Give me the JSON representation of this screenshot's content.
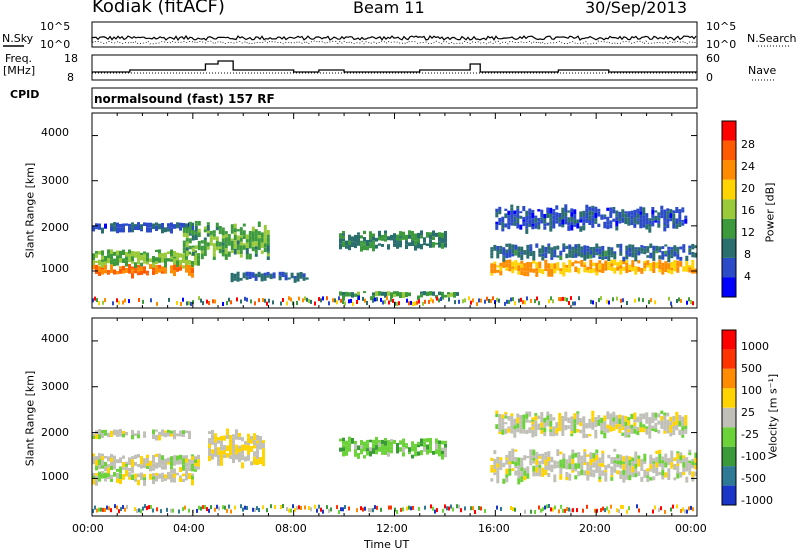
{
  "header": {
    "station": "Kodiak (fitACF)",
    "beam": "Beam 11",
    "date": "30/Sep/2013"
  },
  "noise_panel": {
    "left_label": "N.Sky",
    "right_label": "N.Search",
    "top_tick": "10^5",
    "bottom_tick": "10^0"
  },
  "freq_panel": {
    "left_label_1": "Freq.",
    "left_label_2": "[MHz]",
    "left_ticks": [
      "18",
      "8"
    ],
    "right_label": "Nave",
    "right_ticks": [
      "60",
      "0"
    ]
  },
  "cpid_panel": {
    "label": "CPID",
    "value": "normalsound (fast) 157 RF"
  },
  "x_axis": {
    "title": "Time UT",
    "ticks": [
      "00:00",
      "04:00",
      "08:00",
      "12:00",
      "16:00",
      "20:00",
      "00:00"
    ]
  },
  "y_axis": {
    "title": "Slant Range [km]",
    "ticks": [
      "4000",
      "3000",
      "2000",
      "1000"
    ]
  },
  "power_colorbar": {
    "title": "Power [dB]",
    "ticks": [
      "28",
      "24",
      "20",
      "16",
      "12",
      "8",
      "4"
    ],
    "colors": [
      "#0000ff",
      "#2b4bc8",
      "#2a6e6e",
      "#3c9a3c",
      "#9aca3a",
      "#ffd400",
      "#ff8c00",
      "#ff5a00",
      "#ff0000"
    ]
  },
  "velocity_colorbar": {
    "title": "Velocity [m s⁻¹]",
    "ticks": [
      "1000",
      "500",
      "100",
      "25",
      "-25",
      "-100",
      "-500",
      "-1000"
    ],
    "colors": [
      "#1a36c8",
      "#2e7a96",
      "#3a9a3a",
      "#6cd23a",
      "#c0c0b8",
      "#ffd400",
      "#ff8c00",
      "#ff3300",
      "#ff0000"
    ]
  },
  "chart_data": [
    {
      "type": "heatmap",
      "title": "Power",
      "x_range": [
        "00:00",
        "24:00"
      ],
      "ylim": [
        180,
        4500
      ],
      "ylabel": "Slant Range [km]",
      "xlabel": "Time UT",
      "value_range_dB": [
        0,
        32
      ],
      "echo_bands": [
        {
          "t0": 0.0,
          "t1": 4.0,
          "r_center": 1050,
          "r_half": 80,
          "level": 25
        },
        {
          "t0": 0.0,
          "t1": 4.2,
          "r_center": 1300,
          "r_half": 130,
          "level": 14
        },
        {
          "t0": 0.0,
          "t1": 4.0,
          "r_center": 2000,
          "r_half": 60,
          "level": 6
        },
        {
          "t0": 3.6,
          "t1": 7.0,
          "r_center": 1700,
          "r_half": 300,
          "level": 13
        },
        {
          "t0": 5.5,
          "t1": 8.5,
          "r_center": 900,
          "r_half": 60,
          "level": 8
        },
        {
          "t0": 9.8,
          "t1": 14.0,
          "r_center": 1700,
          "r_half": 150,
          "level": 10
        },
        {
          "t0": 9.8,
          "t1": 14.5,
          "r_center": 500,
          "r_half": 40,
          "level": 12
        },
        {
          "t0": 15.8,
          "t1": 24.0,
          "r_center": 1100,
          "r_half": 110,
          "level": 22
        },
        {
          "t0": 15.8,
          "t1": 24.0,
          "r_center": 1450,
          "r_half": 120,
          "level": 8
        },
        {
          "t0": 16.0,
          "t1": 23.5,
          "r_center": 2200,
          "r_half": 200,
          "level": 6
        }
      ]
    },
    {
      "type": "heatmap",
      "title": "Velocity",
      "x_range": [
        "00:00",
        "24:00"
      ],
      "ylim": [
        180,
        4500
      ],
      "ylabel": "Slant Range [km]",
      "xlabel": "Time UT",
      "value_range_m_s": [
        -1000,
        1000
      ],
      "echo_bands": [
        {
          "t0": 0.0,
          "t1": 4.0,
          "r_center": 1050,
          "r_half": 80,
          "level": 0
        },
        {
          "t0": 0.0,
          "t1": 4.2,
          "r_center": 1350,
          "r_half": 150,
          "level": 0
        },
        {
          "t0": 0.0,
          "t1": 4.0,
          "r_center": 2000,
          "r_half": 60,
          "level": 0
        },
        {
          "t0": 4.6,
          "t1": 6.8,
          "r_center": 1700,
          "r_half": 280,
          "level": 150
        },
        {
          "t0": 9.8,
          "t1": 14.0,
          "r_center": 1700,
          "r_half": 150,
          "level": -250
        },
        {
          "t0": 15.8,
          "t1": 24.0,
          "r_center": 1300,
          "r_half": 250,
          "level": 0
        },
        {
          "t0": 16.0,
          "t1": 23.5,
          "r_center": 2200,
          "r_half": 200,
          "level": 0
        }
      ]
    }
  ]
}
